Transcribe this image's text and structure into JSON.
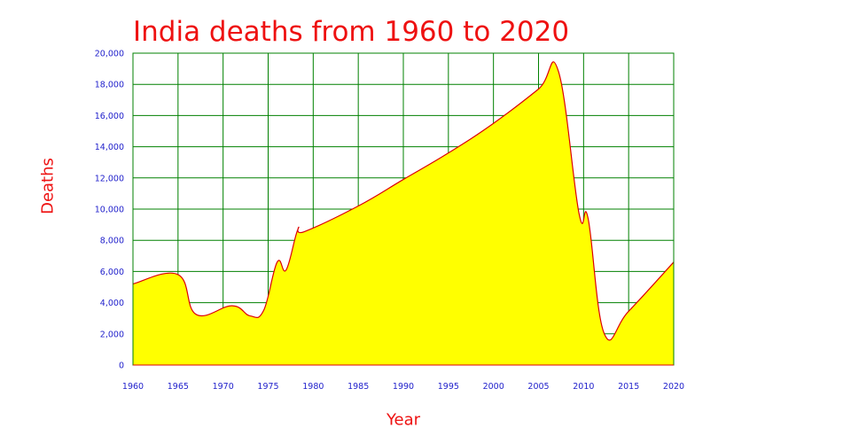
{
  "chart_data": {
    "type": "area",
    "title": "India deaths from 1960 to 2020",
    "xlabel": "Year",
    "ylabel": "Deaths",
    "xlim": [
      1960,
      2020
    ],
    "ylim": [
      0,
      20000
    ],
    "grid": true,
    "x_ticks": [
      1960,
      1965,
      1970,
      1975,
      1980,
      1985,
      1990,
      1995,
      2000,
      2005,
      2010,
      2015,
      2020
    ],
    "y_ticks": [
      0,
      2000,
      4000,
      6000,
      8000,
      10000,
      12000,
      14000,
      16000,
      18000,
      20000
    ],
    "x_tick_labels": [
      "1960",
      "1965",
      "1970",
      "1975",
      "1980",
      "1985",
      "1990",
      "1995",
      "2000",
      "2005",
      "2010",
      "2015",
      "2020"
    ],
    "y_tick_labels": [
      "0",
      "2,000",
      "4,000",
      "6,000",
      "8,000",
      "10,000",
      "12,000",
      "14,000",
      "16,000",
      "18,000",
      "20,000"
    ],
    "colors": {
      "fill": "#ffff00",
      "line": "#dd0000",
      "grid": "#008000",
      "ticks": "#2222cc",
      "labels": "#ee1111"
    },
    "series": [
      {
        "x": [
          1960,
          1965,
          1967,
          1971,
          1973,
          1974.5,
          1976,
          1977,
          1978.3,
          1979,
          1985,
          1990,
          1995,
          2000,
          2005,
          2007.2,
          2009.5,
          2010.5,
          2012.3,
          2015,
          2020
        ],
        "y": [
          5200,
          5800,
          3250,
          3800,
          3150,
          3500,
          6600,
          6100,
          8700,
          8550,
          10200,
          11900,
          13600,
          15500,
          17700,
          18850,
          9700,
          9400,
          2000,
          3450,
          6600
        ]
      }
    ]
  }
}
